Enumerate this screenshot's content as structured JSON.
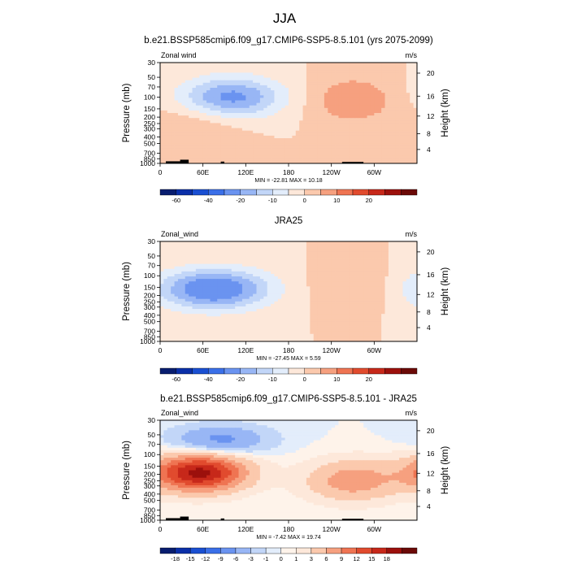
{
  "figure_title": "JJA",
  "chart_data": [
    {
      "type": "heatmap",
      "id": "model",
      "title": "b.e21.BSSP585cmip6.f09_g17.CMIP6-SSP5-8.5.101 (yrs 2075-2099)",
      "left_label": "Zonal wind",
      "right_label": "m/s",
      "xlabel": "",
      "ylabel": "Pressure (mb)",
      "ylabel_right": "Height (km)",
      "x_tick_labels": [
        "0",
        "60E",
        "120E",
        "180",
        "120W",
        "60W"
      ],
      "x_tick_lons": [
        0,
        60,
        120,
        180,
        240,
        300
      ],
      "xlim": [
        0,
        360
      ],
      "y_tick_labels": [
        "30",
        "50",
        "70",
        "100",
        "150",
        "200",
        "250",
        "300",
        "400",
        "500",
        "700",
        "850",
        "1000"
      ],
      "y_tick_pressures": [
        30,
        50,
        70,
        100,
        150,
        200,
        250,
        300,
        400,
        500,
        700,
        850,
        1000
      ],
      "ylim_mb": [
        1000,
        30
      ],
      "height_tick_labels": [
        "4",
        "8",
        "12",
        "16",
        "20"
      ],
      "height_tick_km": [
        4,
        8,
        12,
        16,
        20
      ],
      "minmax_text": "MIN = -22.81  MAX = 10.18",
      "min": -22.81,
      "max": 10.18,
      "colorbar_levels": [
        -70,
        -60,
        -50,
        -40,
        -30,
        -20,
        -15,
        -10,
        -5,
        0,
        5,
        10,
        15,
        20,
        25,
        30
      ],
      "colorbar_labels": [
        "-60",
        "-40",
        "-20",
        "-10",
        "0",
        "10",
        "20",
        "30"
      ],
      "contours": [
        {
          "lon": 100,
          "p": 100,
          "value": -22,
          "rx": 50,
          "ry": 0.5
        },
        {
          "lon": 270,
          "p": 110,
          "value": 10,
          "rx": 40,
          "ry": 0.55
        },
        {
          "lon": 50,
          "p": 280,
          "value": 5,
          "rx": 45,
          "ry": 0.6
        }
      ]
    },
    {
      "type": "heatmap",
      "id": "obs",
      "title": "JRA25",
      "left_label": "Zonal_wind",
      "right_label": "m/s",
      "xlabel": "",
      "ylabel": "Pressure (mb)",
      "ylabel_right": "Height (km)",
      "x_tick_labels": [
        "0",
        "60E",
        "120E",
        "180",
        "120W",
        "60W"
      ],
      "x_tick_lons": [
        0,
        60,
        120,
        180,
        240,
        300
      ],
      "xlim": [
        0,
        360
      ],
      "y_tick_labels": [
        "30",
        "50",
        "70",
        "100",
        "150",
        "200",
        "250",
        "300",
        "400",
        "500",
        "700",
        "850",
        "1000"
      ],
      "y_tick_pressures": [
        30,
        50,
        70,
        100,
        150,
        200,
        250,
        300,
        400,
        500,
        700,
        850,
        1000
      ],
      "ylim_mb": [
        1000,
        30
      ],
      "height_tick_labels": [
        "4",
        "8",
        "12",
        "16",
        "20"
      ],
      "height_tick_km": [
        4,
        8,
        12,
        16,
        20
      ],
      "minmax_text": "MIN = -27.45  MAX =  5.59",
      "min": -27.45,
      "max": 5.59,
      "colorbar_levels": [
        -70,
        -60,
        -50,
        -40,
        -30,
        -20,
        -15,
        -10,
        -5,
        0,
        5,
        10,
        15,
        20,
        25,
        30
      ],
      "colorbar_labels": [
        "-60",
        "-40",
        "-20",
        "-10",
        "0",
        "10",
        "20",
        "30"
      ],
      "contours": [
        {
          "lon": 75,
          "p": 160,
          "value": -27,
          "rx": 55,
          "ry": 0.5
        },
        {
          "lon": 270,
          "p": 150,
          "value": 5,
          "rx": 40,
          "ry": 0.5
        }
      ]
    },
    {
      "type": "heatmap",
      "id": "diff",
      "title": "b.e21.BSSP585cmip6.f09_g17.CMIP6-SSP5-8.5.101 - JRA25",
      "left_label": "Zonal_wind",
      "right_label": "m/s",
      "xlabel": "",
      "ylabel": "Pressure (mb)",
      "ylabel_right": "Height (km)",
      "x_tick_labels": [
        "0",
        "60E",
        "120E",
        "180",
        "120W",
        "60W"
      ],
      "x_tick_lons": [
        0,
        60,
        120,
        180,
        240,
        300
      ],
      "xlim": [
        0,
        360
      ],
      "y_tick_labels": [
        "30",
        "50",
        "70",
        "100",
        "150",
        "200",
        "250",
        "300",
        "400",
        "500",
        "700",
        "850",
        "1000"
      ],
      "y_tick_pressures": [
        30,
        50,
        70,
        100,
        150,
        200,
        250,
        300,
        400,
        500,
        700,
        850,
        1000
      ],
      "ylim_mb": [
        1000,
        30
      ],
      "height_tick_labels": [
        "4",
        "8",
        "12",
        "16",
        "20"
      ],
      "height_tick_km": [
        4,
        8,
        12,
        16,
        20
      ],
      "minmax_text": "MIN = -7.42  MAX = 19.74",
      "min": -7.42,
      "max": 19.74,
      "colorbar_levels": [
        -21,
        -18,
        -15,
        -12,
        -9,
        -6,
        -3,
        -1,
        0,
        1,
        3,
        6,
        9,
        12,
        15,
        18,
        21
      ],
      "colorbar_labels": [
        "-18",
        "-15",
        "-12",
        "-9",
        "-6",
        "-3",
        "-1",
        "0",
        "1",
        "3",
        "6",
        "9",
        "12",
        "15",
        "18"
      ],
      "contours": [
        {
          "lon": 55,
          "p": 190,
          "value": 19,
          "rx": 45,
          "ry": 0.45
        },
        {
          "lon": 85,
          "p": 60,
          "value": -7,
          "rx": 45,
          "ry": 0.35
        },
        {
          "lon": 270,
          "p": 250,
          "value": 8,
          "rx": 45,
          "ry": 0.5
        }
      ]
    }
  ],
  "colors": {
    "ncl_blue_red": [
      "#081d6f",
      "#0a2fa8",
      "#1a4fd2",
      "#3a6fe8",
      "#6a93f0",
      "#98b6f5",
      "#c2d6f8",
      "#e3edfb",
      "#fde8da",
      "#fbc9ad",
      "#f6a07f",
      "#ef7452",
      "#e14b2e",
      "#c7281a",
      "#9c100c",
      "#6b0a07"
    ],
    "ncl_diff": [
      "#081d6f",
      "#0a2fa8",
      "#1a4fd2",
      "#3a6fe8",
      "#6a93f0",
      "#98b6f5",
      "#c2d6f8",
      "#e3edfb",
      "#fef3ea",
      "#fde8da",
      "#fbc9ad",
      "#f6a07f",
      "#ef7452",
      "#e14b2e",
      "#c7281a",
      "#9c100c",
      "#6b0a07"
    ],
    "topography": "#000000"
  }
}
